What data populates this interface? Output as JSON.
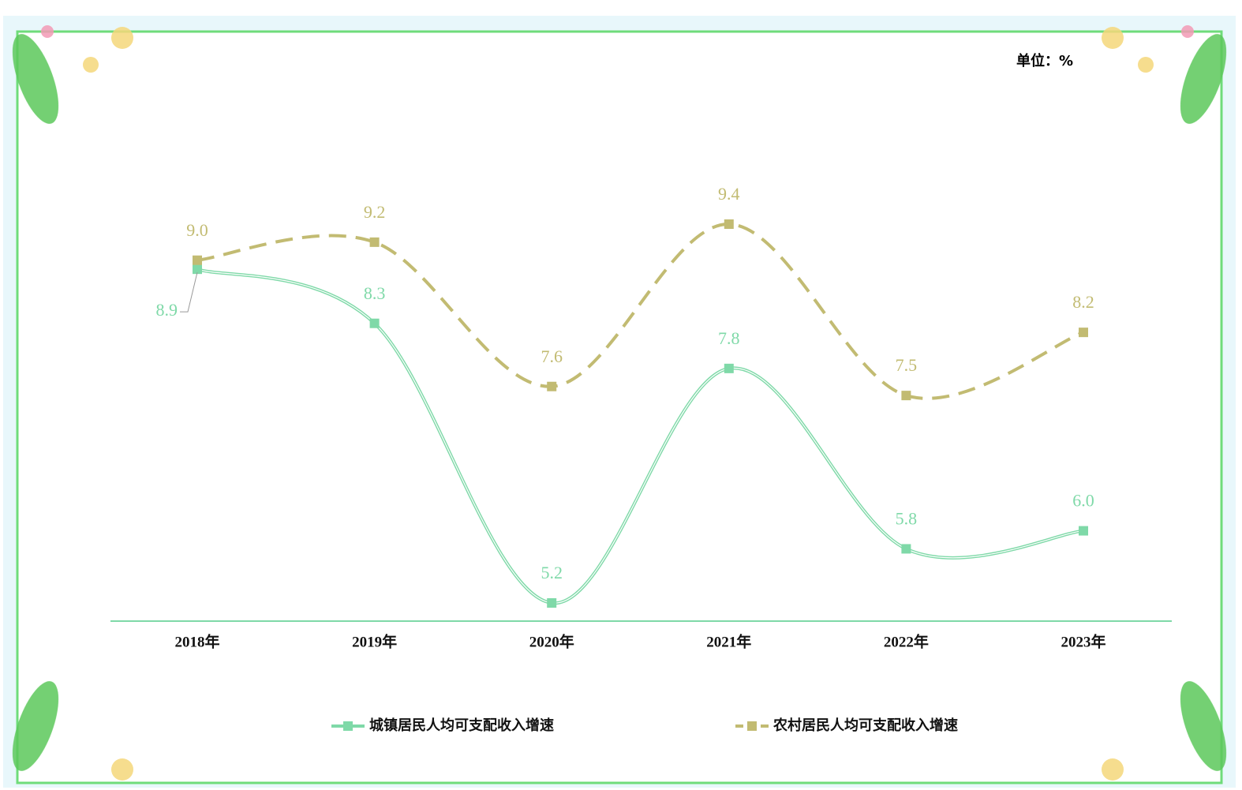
{
  "chart_data": {
    "type": "line",
    "unit": "单位：%",
    "categories": [
      "2018年",
      "2019年",
      "2020年",
      "2021年",
      "2022年",
      "2023年"
    ],
    "series": [
      {
        "name": "城镇居民人均可支配收入增速",
        "color": "#7fd9a8",
        "values": [
          8.9,
          8.3,
          5.2,
          7.8,
          5.8,
          6.0
        ],
        "value_labels": [
          "8.9",
          "8.3",
          "5.2",
          "7.8",
          "5.8",
          "6.0"
        ],
        "dash": false
      },
      {
        "name": "农村居民人均可支配收入增速",
        "color": "#c2bb72",
        "values": [
          9.0,
          9.2,
          7.6,
          9.4,
          7.5,
          8.2
        ],
        "value_labels": [
          "9.0",
          "9.2",
          "7.6",
          "9.4",
          "7.5",
          "8.2"
        ],
        "dash": true
      }
    ],
    "smooth": true
  }
}
